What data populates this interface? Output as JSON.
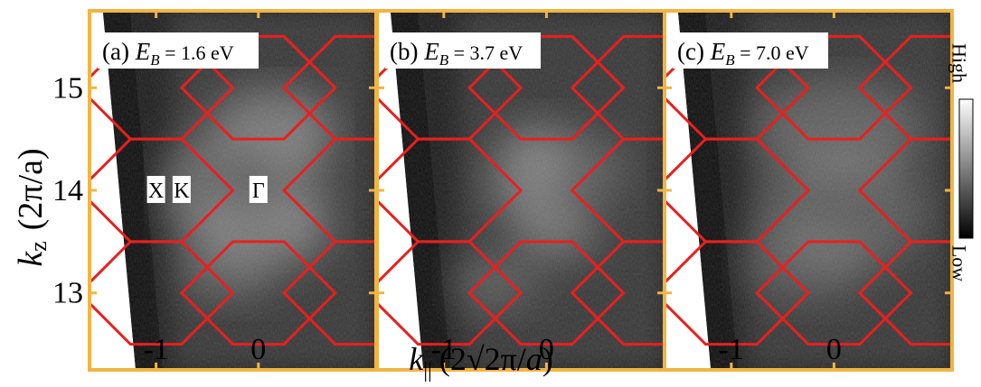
{
  "chart_data": {
    "type": "heatmap",
    "ylabel": {
      "main": "k",
      "sub": "z",
      "unit": "(2π/a)"
    },
    "xlabel": {
      "main": "k",
      "sub": "||",
      "unit_pre": "(2√2π/",
      "unit_var": "a",
      "unit_post": ")"
    },
    "ylim": [
      12.25,
      15.75
    ],
    "xlim": [
      -1.65,
      1.15
    ],
    "y_ticks": [
      13,
      14,
      15
    ],
    "y_tick_labels": [
      "13",
      "14",
      "15"
    ],
    "x_ticks": [
      -1,
      0
    ],
    "x_tick_labels": [
      "-1",
      "0"
    ],
    "colorbar": {
      "high": "High",
      "low": "Low"
    },
    "panels": [
      {
        "label": "(a)",
        "eb_var": "E",
        "eb_sub": "B",
        "eb_value": " = 1.6 eV",
        "points": [
          {
            "name": "X",
            "x": -1.0,
            "y": 14.0
          },
          {
            "name": "K",
            "x": -0.75,
            "y": 14.0
          },
          {
            "name": "Γ",
            "x": 0.0,
            "y": 14.0
          }
        ]
      },
      {
        "label": "(b)",
        "eb_var": "E",
        "eb_sub": "B",
        "eb_value": " = 3.7 eV",
        "points": []
      },
      {
        "label": "(c)",
        "eb_var": "E",
        "eb_sub": "B",
        "eb_value": " = 7.0 eV",
        "points": []
      }
    ],
    "bz_boundary": {
      "color": "#e8201e",
      "gamma_points": [
        [
          0,
          13
        ],
        [
          0,
          15
        ],
        [
          -1,
          14
        ],
        [
          1,
          14
        ]
      ],
      "corner_dx": 0.25,
      "edge_dx": 0.5,
      "half_height": 0.5
    },
    "frame_color": "#f2b442"
  }
}
